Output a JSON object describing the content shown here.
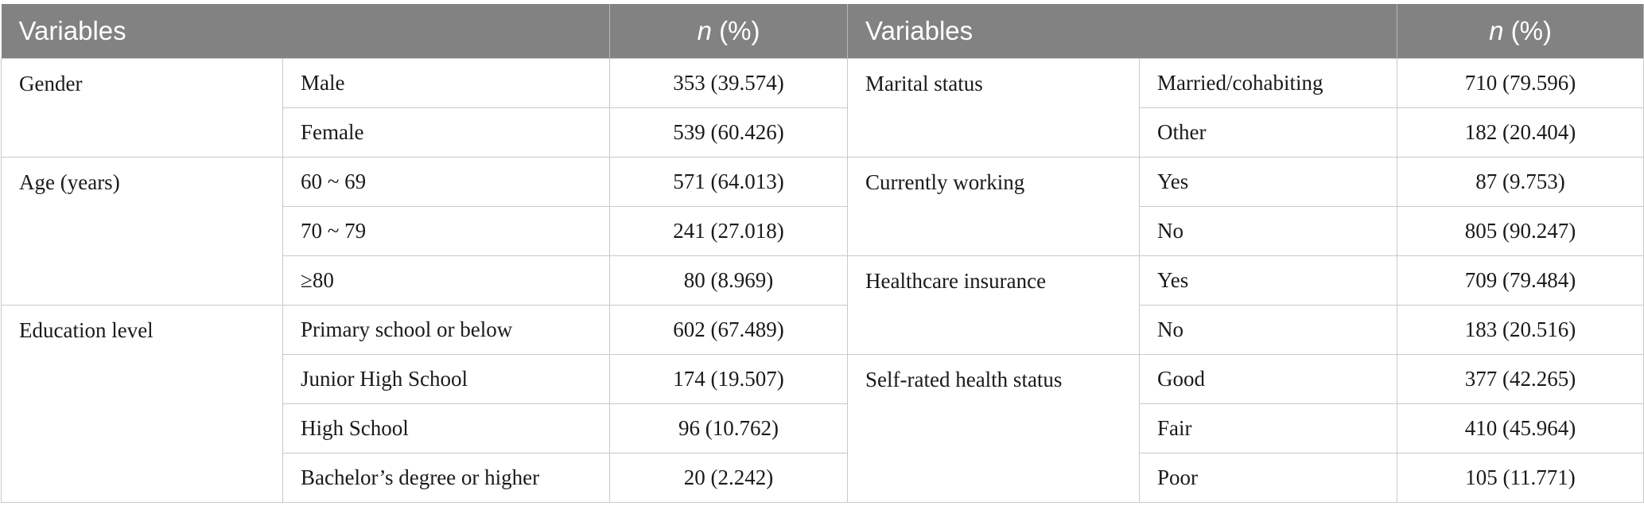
{
  "header": {
    "left_var": "Variables",
    "left_n": "n",
    "left_pct": " (%)",
    "right_var": "Variables",
    "right_n": "n",
    "right_pct": " (%)"
  },
  "left": {
    "gender": {
      "label": "Gender",
      "rows": [
        {
          "cat": "Male",
          "val": "353 (39.574)"
        },
        {
          "cat": "Female",
          "val": "539 (60.426)"
        }
      ]
    },
    "age": {
      "label": "Age (years)",
      "rows": [
        {
          "cat": "60 ~ 69",
          "val": "571 (64.013)"
        },
        {
          "cat": "70 ~ 79",
          "val": "241 (27.018)"
        },
        {
          "cat": "≥80",
          "val": "80 (8.969)"
        }
      ]
    },
    "education": {
      "label": "Education level",
      "rows": [
        {
          "cat": "Primary school or below",
          "val": "602 (67.489)"
        },
        {
          "cat": "Junior High School",
          "val": "174 (19.507)"
        },
        {
          "cat": "High School",
          "val": "96 (10.762)"
        },
        {
          "cat": "Bachelor’s degree or higher",
          "val": "20 (2.242)"
        }
      ]
    }
  },
  "right": {
    "marital": {
      "label": "Marital status",
      "rows": [
        {
          "cat": "Married/cohabiting",
          "val": "710 (79.596)"
        },
        {
          "cat": "Other",
          "val": "182 (20.404)"
        }
      ]
    },
    "working": {
      "label": "Currently working",
      "rows": [
        {
          "cat": "Yes",
          "val": "87 (9.753)"
        },
        {
          "cat": "No",
          "val": "805 (90.247)"
        }
      ]
    },
    "insurance": {
      "label": "Healthcare insurance",
      "rows": [
        {
          "cat": "Yes",
          "val": "709 (79.484)"
        },
        {
          "cat": "No",
          "val": "183 (20.516)"
        }
      ]
    },
    "health": {
      "label": "Self-rated health status",
      "rows": [
        {
          "cat": "Good",
          "val": "377 (42.265)"
        },
        {
          "cat": "Fair",
          "val": "410 (45.964)"
        },
        {
          "cat": "Poor",
          "val": "105 (11.771)"
        }
      ]
    }
  }
}
